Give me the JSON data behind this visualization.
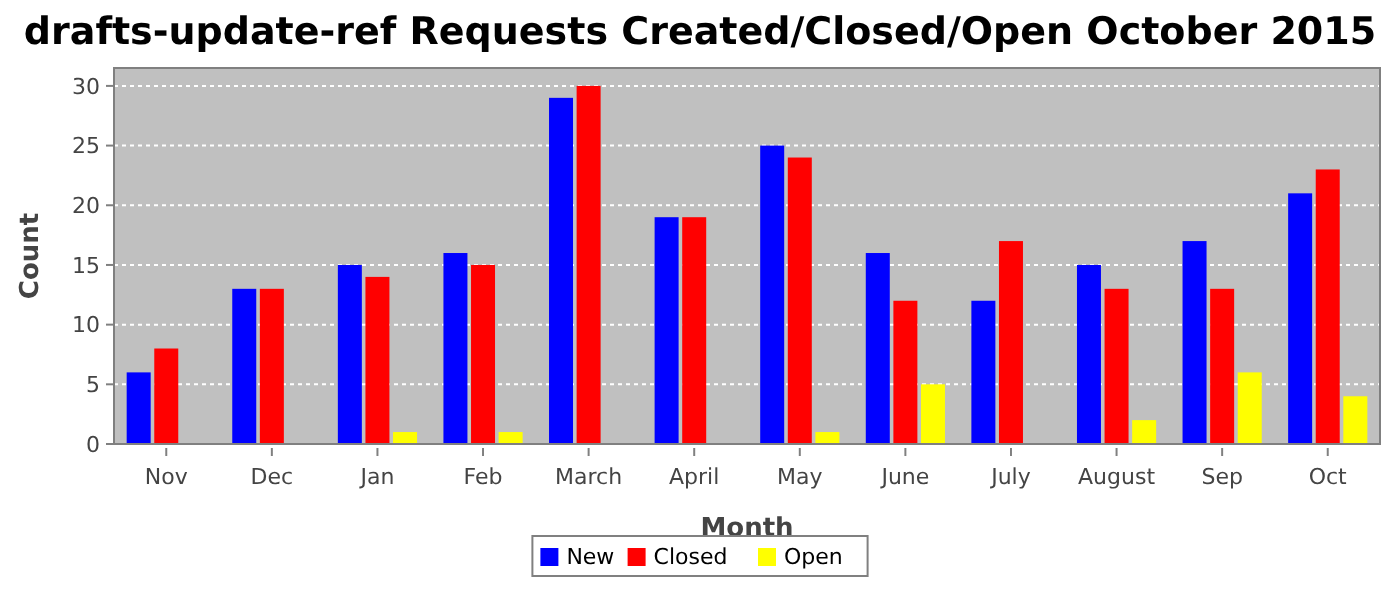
{
  "chart_data": {
    "type": "bar",
    "title": "drafts-update-ref Requests Created/Closed/Open October 2015",
    "xlabel": "Month",
    "ylabel": "Count",
    "categories": [
      "Nov",
      "Dec",
      "Jan",
      "Feb",
      "March",
      "April",
      "May",
      "June",
      "July",
      "August",
      "Sep",
      "Oct"
    ],
    "series": [
      {
        "name": "New",
        "color": "#0000ff",
        "values": [
          6,
          13,
          15,
          16,
          29,
          19,
          25,
          16,
          12,
          15,
          17,
          21
        ]
      },
      {
        "name": "Closed",
        "color": "#ff0000",
        "values": [
          8,
          13,
          14,
          15,
          30,
          19,
          24,
          12,
          17,
          13,
          13,
          23
        ]
      },
      {
        "name": "Open",
        "color": "#ffff00",
        "values": [
          0,
          0,
          1,
          1,
          0,
          0,
          1,
          5,
          0,
          2,
          6,
          4
        ]
      }
    ],
    "ylim": [
      0,
      31.5
    ],
    "yticks": [
      0,
      5,
      10,
      15,
      20,
      25,
      30
    ],
    "grid": "y",
    "legend": "bottom"
  }
}
